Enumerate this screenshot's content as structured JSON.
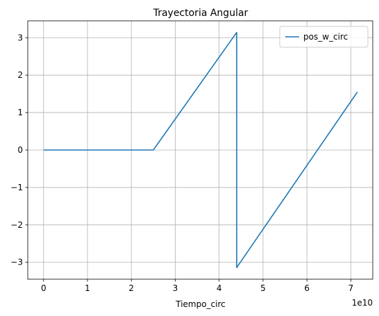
{
  "chart_data": {
    "type": "line",
    "title": "Trayectoria Angular",
    "xlabel": "Tiempo_circ",
    "ylabel": "",
    "x_offset_label": "1e10",
    "xlim": [
      -0.36,
      7.5
    ],
    "ylim": [
      -3.45,
      3.45
    ],
    "xticks": [
      0,
      1,
      2,
      3,
      4,
      5,
      6,
      7
    ],
    "yticks": [
      -3,
      -2,
      -1,
      0,
      1,
      2,
      3
    ],
    "ytick_labels": [
      "−3",
      "−2",
      "−1",
      "0",
      "1",
      "2",
      "3"
    ],
    "grid": true,
    "legend_position": "upper right",
    "series": [
      {
        "name": "pos_w_circ",
        "color": "#1f77b4",
        "x": [
          0,
          2.5,
          4.4,
          4.4,
          7.15
        ],
        "y": [
          0,
          0,
          3.14,
          -3.14,
          1.55
        ]
      }
    ]
  }
}
